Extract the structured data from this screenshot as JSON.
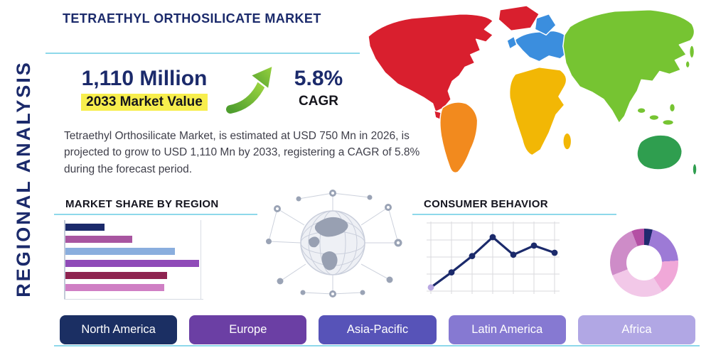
{
  "theme": {
    "navy": "#1b2a6b",
    "accent_line": "#8ed8ea",
    "highlight": "#f7ee4d"
  },
  "header": {
    "title": "TETRAETHYL ORTHOSILICATE MARKET",
    "side_label": "REGIONAL ANALYSIS"
  },
  "stats": {
    "market_value": "1,110 Million",
    "market_value_label": "2033 Market Value",
    "cagr_value": "5.8%",
    "cagr_label": "CAGR",
    "description": "Tetraethyl Orthosilicate Market, is estimated at USD 750 Mn in 2026, is projected to grow to USD 1,110 Mn by 2033, registering a CAGR of 5.8% during the forecast period."
  },
  "sections": {
    "market_share_title": "MARKET SHARE BY REGION",
    "consumer_behavior_title": "CONSUMER BEHAVIOR"
  },
  "region_buttons": [
    {
      "label": "North America",
      "color": "#1b2f63"
    },
    {
      "label": "Europe",
      "color": "#6b3fa4"
    },
    {
      "label": "Asia-Pacific",
      "color": "#5753b8"
    },
    {
      "label": "Latin America",
      "color": "#8679d2"
    },
    {
      "label": "Africa",
      "color": "#b1a7e4"
    }
  ],
  "map": {
    "colors": {
      "north_america": "#d91f2e",
      "greenland": "#d91f2e",
      "south_america": "#f28a1e",
      "europe": "#3b8ede",
      "africa": "#f2b705",
      "asia": "#76c432",
      "australia": "#2f9e4f"
    }
  },
  "chart_data": [
    {
      "type": "bar",
      "title": "Market Share by Region",
      "orientation": "horizontal",
      "categories": [
        "",
        "",
        "",
        "",
        "",
        ""
      ],
      "values": [
        29,
        50,
        82,
        100,
        76,
        74
      ],
      "xmax": 100,
      "colors": [
        "#1b2a6b",
        "#a855a0",
        "#8aaede",
        "#8f4bb8",
        "#8e2350",
        "#cf7fc4"
      ],
      "note": "bars are unlabeled in source; values are relative lengths (% of longest bar)"
    },
    {
      "type": "line",
      "title": "Consumer Behavior",
      "x": [
        1,
        2,
        3,
        4,
        5,
        6,
        7
      ],
      "values": [
        1.0,
        3.3,
        5.8,
        8.7,
        6.0,
        7.4,
        6.3
      ],
      "ymax": 10,
      "grid": true,
      "color": "#1b2a6b",
      "first_point_color": "#b9a8e2"
    },
    {
      "type": "pie",
      "title": "Regional split donut",
      "donut": true,
      "segments": [
        {
          "value": 4,
          "color": "#202a6e"
        },
        {
          "value": 20,
          "color": "#9d7ad6"
        },
        {
          "value": 17,
          "color": "#f0a8d8"
        },
        {
          "value": 28,
          "color": "#f2c8e8"
        },
        {
          "value": 25,
          "color": "#ce8cc8"
        },
        {
          "value": 6,
          "color": "#b44fa4"
        }
      ]
    }
  ]
}
